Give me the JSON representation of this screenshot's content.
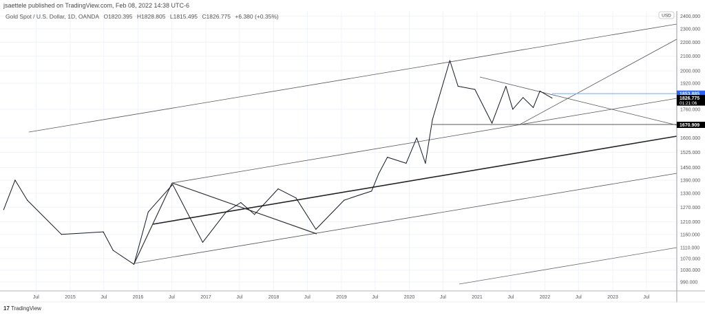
{
  "header": {
    "published": "jsaettele published on TradingView.com, Feb 08, 2022 14:38 UTC-6",
    "symbol": "Gold Spot / U.S. Dollar, 1D, OANDA",
    "open": "O1820.395",
    "high": "H1828.805",
    "low": "L1815.495",
    "close": "C1826.775",
    "change": "+6.380 (+0.35%)"
  },
  "brand": {
    "logo_text": "17",
    "name": "TradingView"
  },
  "chart_data": {
    "type": "line",
    "title": "Gold Spot / U.S. Dollar, 1D, OANDA",
    "y_scale": "log",
    "currency_badge": "USD",
    "ylim": [
      975,
      2420
    ],
    "xlim": [
      "2014-01-01",
      "2024-01-10"
    ],
    "grid": true,
    "y_ticks": [
      "2400.000",
      "2300.000",
      "2200.000",
      "2100.000",
      "2000.000",
      "1920.000",
      "1760.000",
      "1600.000",
      "1525.000",
      "1450.000",
      "1390.000",
      "1330.000",
      "1270.000",
      "1210.000",
      "1160.000",
      "1110.000",
      "1070.000",
      "1030.000",
      "990.000"
    ],
    "x_ticks": [
      {
        "label": "Jul",
        "date": "2014-07-01"
      },
      {
        "label": "2015",
        "date": "2015-01-01"
      },
      {
        "label": "Jul",
        "date": "2015-07-01"
      },
      {
        "label": "2016",
        "date": "2016-01-01"
      },
      {
        "label": "Jul",
        "date": "2016-07-01"
      },
      {
        "label": "2017",
        "date": "2017-01-01"
      },
      {
        "label": "Jul",
        "date": "2017-07-01"
      },
      {
        "label": "2018",
        "date": "2018-01-01"
      },
      {
        "label": "Jul",
        "date": "2018-07-01"
      },
      {
        "label": "2019",
        "date": "2019-01-01"
      },
      {
        "label": "Jul",
        "date": "2019-07-01"
      },
      {
        "label": "2020",
        "date": "2020-01-01"
      },
      {
        "label": "Jul",
        "date": "2020-07-01"
      },
      {
        "label": "2021",
        "date": "2021-01-01"
      },
      {
        "label": "Jul",
        "date": "2021-07-01"
      },
      {
        "label": "2022",
        "date": "2022-01-01"
      },
      {
        "label": "Jul",
        "date": "2022-07-01"
      },
      {
        "label": "2023",
        "date": "2023-01-01"
      },
      {
        "label": "Jul",
        "date": "2023-07-01"
      }
    ],
    "series": [
      {
        "x": [
          "2014-01-08",
          "2014-03-10",
          "2014-05-15",
          "2014-11-15",
          "2015-06-28",
          "2015-08-20",
          "2015-12-10",
          "2016-02-25",
          "2016-07-06",
          "2016-12-15",
          "2017-04-20",
          "2017-07-08",
          "2017-09-20",
          "2018-01-25",
          "2018-05-01",
          "2018-08-16",
          "2019-01-15",
          "2019-03-30",
          "2019-06-12",
          "2019-07-20",
          "2019-09-05",
          "2019-12-15",
          "2020-02-10",
          "2020-03-28",
          "2020-05-05",
          "2020-08-07",
          "2020-09-20",
          "2020-12-20",
          "2021-03-22",
          "2021-06-05",
          "2021-07-12",
          "2021-09-05",
          "2021-10-30",
          "2021-12-05",
          "2022-02-08"
        ],
        "y": [
          1260,
          1390,
          1300,
          1160,
          1170,
          1100,
          1050,
          1250,
          1370,
          1130,
          1250,
          1290,
          1240,
          1350,
          1310,
          1180,
          1300,
          1320,
          1340,
          1420,
          1500,
          1470,
          1600,
          1470,
          1700,
          2070,
          1900,
          1880,
          1680,
          1900,
          1760,
          1830,
          1770,
          1870,
          1826.775
        ]
      }
    ],
    "price_labels": [
      {
        "value": "1853.885",
        "color": "#2962ff"
      },
      {
        "value": "1826.775",
        "countdown": "01:21:06",
        "color": "#000000"
      },
      {
        "value": "1670.909",
        "color": "#000000"
      }
    ],
    "line_color": "#131722",
    "level_line_color": "#90b4ff"
  }
}
